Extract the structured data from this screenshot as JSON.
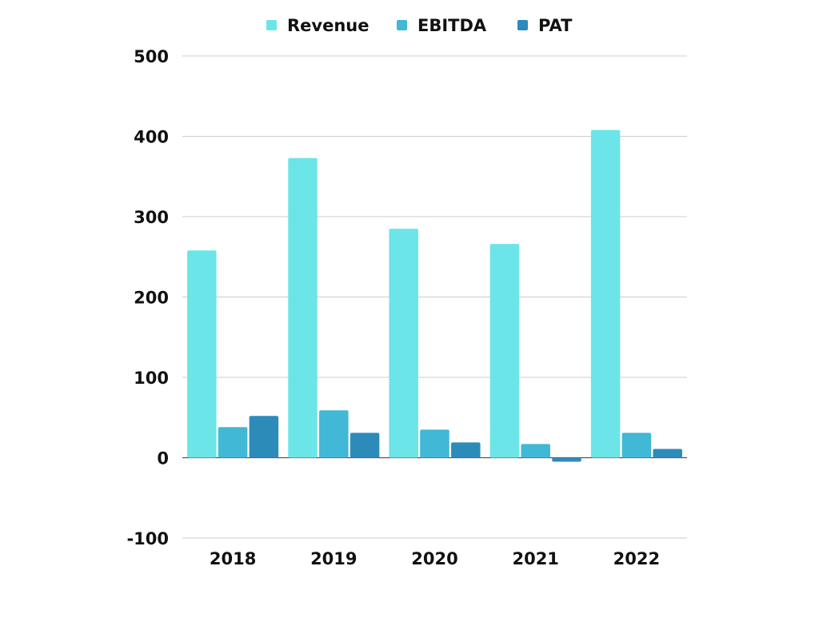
{
  "chart_data": {
    "type": "bar",
    "title": "",
    "xlabel": "",
    "ylabel": "",
    "categories": [
      "2018",
      "2019",
      "2020",
      "2021",
      "2022"
    ],
    "series": [
      {
        "name": "Revenue",
        "color": "#6ce5e8",
        "values": [
          258,
          373,
          285,
          266,
          408
        ]
      },
      {
        "name": "EBITDA",
        "color": "#41b8d5",
        "values": [
          38,
          59,
          35,
          17,
          31
        ]
      },
      {
        "name": "PAT",
        "color": "#2d8bba",
        "values": [
          52,
          31,
          19,
          -5,
          11
        ]
      }
    ],
    "ylim": [
      -100,
      500
    ],
    "yticks": [
      "500",
      "400",
      "300",
      "200",
      "100",
      "0",
      "-100"
    ],
    "grid": true,
    "legend": "top-center",
    "gridline_color": "#cccccc",
    "zero_line_color": "#555555"
  }
}
